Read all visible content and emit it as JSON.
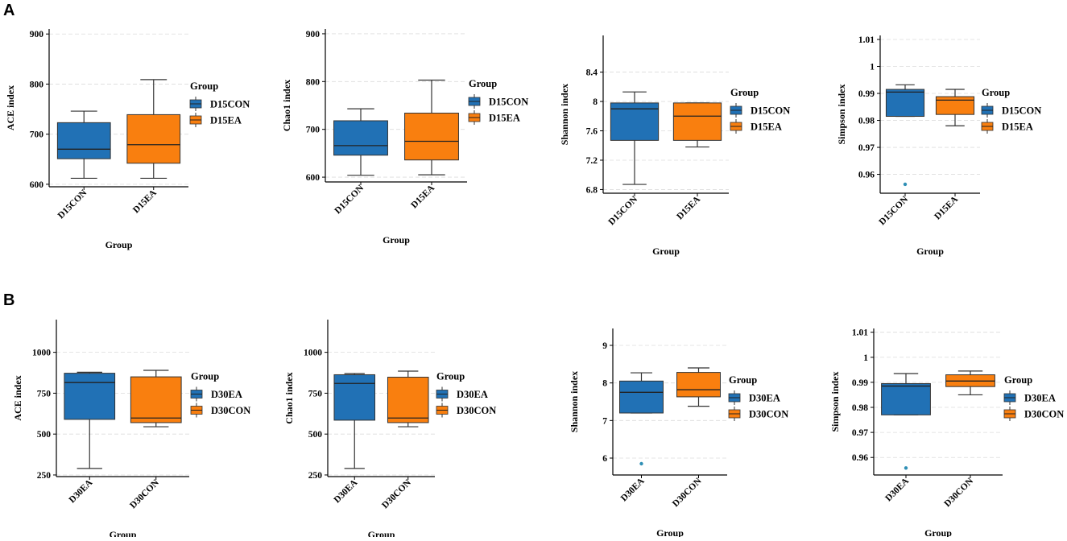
{
  "panels": [
    {
      "label": "A"
    },
    {
      "label": "B"
    }
  ],
  "colors": {
    "blue": "#2171b5",
    "orange": "#f97f0f",
    "outlier": "#2f8fb5",
    "grid": "#dcdcdc"
  },
  "chart_data": [
    {
      "type": "box",
      "panel": "A",
      "title": "",
      "xlabel": "Group",
      "ylabel": "ACE index",
      "categories": [
        "D15CON",
        "D15EA"
      ],
      "ylim": [
        595,
        910
      ],
      "yticks": [
        600,
        700,
        800,
        900
      ],
      "ytick_labels": [
        "600",
        "700",
        "800",
        "900"
      ],
      "legend": {
        "title": "Group",
        "entries": [
          "D15CON",
          "D15EA"
        ]
      },
      "boxes": [
        {
          "name": "D15CON",
          "whislo": 612,
          "q1": 651,
          "med": 670,
          "q3": 723,
          "whishi": 746,
          "outliers": []
        },
        {
          "name": "D15EA",
          "whislo": 612,
          "q1": 642,
          "med": 679,
          "q3": 739,
          "whishi": 809,
          "outliers": []
        }
      ]
    },
    {
      "type": "box",
      "panel": "A",
      "title": "",
      "xlabel": "Group",
      "ylabel": "Chao1 index",
      "categories": [
        "D15CON",
        "D15EA"
      ],
      "ylim": [
        590,
        910
      ],
      "yticks": [
        600,
        700,
        800,
        900
      ],
      "ytick_labels": [
        "600",
        "700",
        "800",
        "900"
      ],
      "legend": {
        "title": "Group",
        "entries": [
          "D15CON",
          "D15EA"
        ]
      },
      "boxes": [
        {
          "name": "D15CON",
          "whislo": 604,
          "q1": 646,
          "med": 666,
          "q3": 718,
          "whishi": 743,
          "outliers": []
        },
        {
          "name": "D15EA",
          "whislo": 605,
          "q1": 636,
          "med": 675,
          "q3": 734,
          "whishi": 803,
          "outliers": []
        }
      ]
    },
    {
      "type": "box",
      "panel": "A",
      "title": "",
      "xlabel": "Group",
      "ylabel": "Shannon index",
      "categories": [
        "D15CON",
        "D15EA"
      ],
      "ylim": [
        6.75,
        8.9
      ],
      "yticks": [
        6.8,
        7.2,
        7.6,
        8,
        8.4
      ],
      "ytick_labels": [
        "6.8",
        "7.2",
        "7.6",
        "8",
        "8.4"
      ],
      "legend": {
        "title": "Group",
        "entries": [
          "D15CON",
          "D15EA"
        ]
      },
      "boxes": [
        {
          "name": "D15CON",
          "whislo": 6.87,
          "q1": 7.47,
          "med": 7.9,
          "q3": 7.98,
          "whishi": 8.13,
          "outliers": []
        },
        {
          "name": "D15EA",
          "whislo": 7.38,
          "q1": 7.47,
          "med": 7.8,
          "q3": 7.98,
          "whishi": 7.98,
          "outliers": []
        }
      ]
    },
    {
      "type": "box",
      "panel": "A",
      "title": "",
      "xlabel": "Group",
      "ylabel": "Simpson index",
      "categories": [
        "D15CON",
        "D15EA"
      ],
      "ylim": [
        0.953,
        1.0115
      ],
      "yticks": [
        0.96,
        0.97,
        0.98,
        0.99,
        1,
        1.01
      ],
      "ytick_labels": [
        "0.96",
        "0.97",
        "0.98",
        "0.99",
        "1",
        "1.01"
      ],
      "legend": {
        "title": "Group",
        "entries": [
          "D15CON",
          "D15EA"
        ]
      },
      "boxes": [
        {
          "name": "D15CON",
          "whislo": 0.9815,
          "q1": 0.9815,
          "med": 0.9905,
          "q3": 0.9915,
          "whishi": 0.9932,
          "outliers": [
            0.9563
          ]
        },
        {
          "name": "D15EA",
          "whislo": 0.978,
          "q1": 0.9822,
          "med": 0.9875,
          "q3": 0.9888,
          "whishi": 0.9915,
          "outliers": []
        }
      ]
    },
    {
      "type": "box",
      "panel": "B",
      "title": "",
      "xlabel": "Group",
      "ylabel": "ACE index",
      "categories": [
        "D30EA",
        "D30CON"
      ],
      "ylim": [
        240,
        1200
      ],
      "yticks": [
        250,
        500,
        750,
        1000
      ],
      "ytick_labels": [
        "250",
        "500",
        "750",
        "1000"
      ],
      "legend": {
        "title": "Group",
        "entries": [
          "D30EA",
          "D30CON"
        ]
      },
      "boxes": [
        {
          "name": "D30EA",
          "whislo": 290,
          "q1": 590,
          "med": 815,
          "q3": 872,
          "whishi": 878,
          "outliers": []
        },
        {
          "name": "D30CON",
          "whislo": 545,
          "q1": 570,
          "med": 598,
          "q3": 850,
          "whishi": 890,
          "outliers": []
        }
      ]
    },
    {
      "type": "box",
      "panel": "B",
      "title": "",
      "xlabel": "Group",
      "ylabel": "Chao1 index",
      "categories": [
        "D30EA",
        "D30CON"
      ],
      "ylim": [
        240,
        1200
      ],
      "yticks": [
        250,
        500,
        750,
        1000
      ],
      "ytick_labels": [
        "250",
        "500",
        "750",
        "1000"
      ],
      "legend": {
        "title": "Group",
        "entries": [
          "D30EA",
          "D30CON"
        ]
      },
      "boxes": [
        {
          "name": "D30EA",
          "whislo": 290,
          "q1": 585,
          "med": 810,
          "q3": 863,
          "whishi": 870,
          "outliers": []
        },
        {
          "name": "D30CON",
          "whislo": 545,
          "q1": 570,
          "med": 598,
          "q3": 848,
          "whishi": 885,
          "outliers": []
        }
      ]
    },
    {
      "type": "box",
      "panel": "B",
      "title": "",
      "xlabel": "Group",
      "ylabel": "Shannon index",
      "categories": [
        "D30EA",
        "D30CON"
      ],
      "ylim": [
        5.55,
        9.45
      ],
      "yticks": [
        6,
        7,
        8,
        9
      ],
      "ytick_labels": [
        "6",
        "7",
        "8",
        "9"
      ],
      "legend": {
        "title": "Group",
        "entries": [
          "D30EA",
          "D30CON"
        ]
      },
      "boxes": [
        {
          "name": "D30EA",
          "whislo": 7.2,
          "q1": 7.2,
          "med": 7.75,
          "q3": 8.05,
          "whishi": 8.27,
          "outliers": [
            5.85
          ]
        },
        {
          "name": "D30CON",
          "whislo": 7.38,
          "q1": 7.63,
          "med": 7.82,
          "q3": 8.28,
          "whishi": 8.4,
          "outliers": []
        }
      ]
    },
    {
      "type": "box",
      "panel": "B",
      "title": "",
      "xlabel": "Group",
      "ylabel": "Simpson index",
      "categories": [
        "D30EA",
        "D30CON"
      ],
      "ylim": [
        0.953,
        1.0115
      ],
      "yticks": [
        0.96,
        0.97,
        0.98,
        0.99,
        1,
        1.01
      ],
      "ytick_labels": [
        "0.96",
        "0.97",
        "0.98",
        "0.99",
        "1",
        "1.01"
      ],
      "legend": {
        "title": "Group",
        "entries": [
          "D30EA",
          "D30CON"
        ]
      },
      "boxes": [
        {
          "name": "D30EA",
          "whislo": 0.977,
          "q1": 0.977,
          "med": 0.9885,
          "q3": 0.9895,
          "whishi": 0.9935,
          "outliers": [
            0.9558
          ]
        },
        {
          "name": "D30CON",
          "whislo": 0.985,
          "q1": 0.9883,
          "med": 0.9905,
          "q3": 0.993,
          "whishi": 0.9945,
          "outliers": []
        }
      ]
    }
  ]
}
